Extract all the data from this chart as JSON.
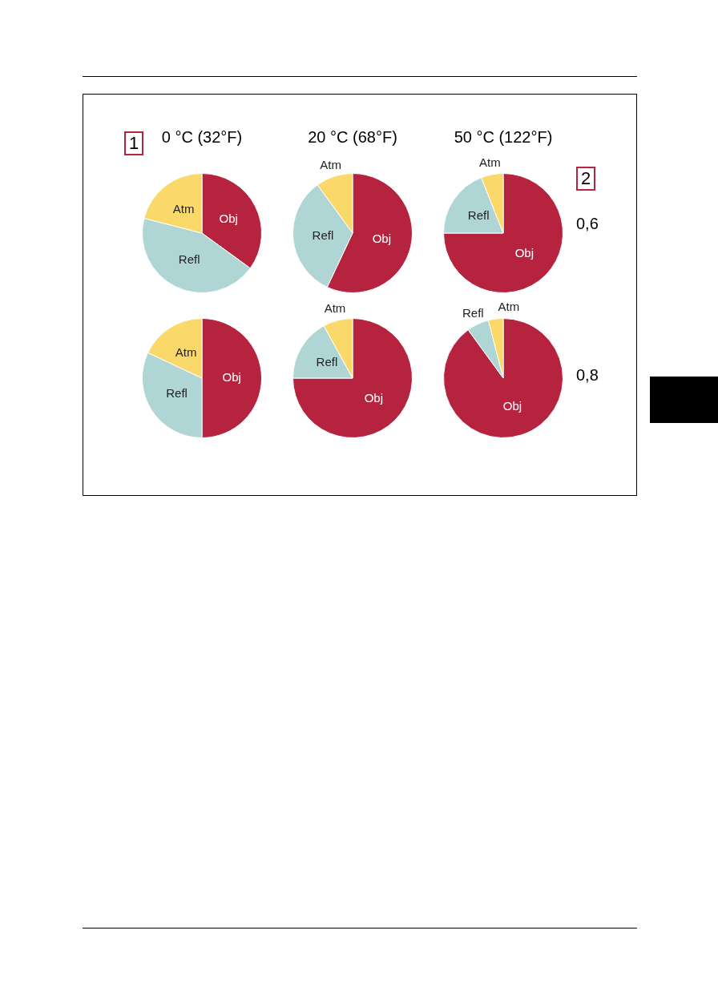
{
  "chart_data": [
    {
      "type": "pie",
      "title": "0 °C (32°F)",
      "annotations": [
        "1"
      ],
      "categories": [
        "Obj",
        "Refl",
        "Atm"
      ],
      "values": [
        35,
        44,
        21
      ],
      "colors": [
        "#b5233f",
        "#afd5d5",
        "#fbd86a"
      ]
    },
    {
      "type": "pie",
      "title": "20 °C (68°F)",
      "categories": [
        "Obj",
        "Refl",
        "Atm"
      ],
      "values": [
        57,
        33,
        10
      ],
      "colors": [
        "#b5233f",
        "#afd5d5",
        "#fbd86a"
      ]
    },
    {
      "type": "pie",
      "title": "50 °C (122°F)",
      "annotations": [
        "2"
      ],
      "ylabel": "0,6",
      "categories": [
        "Obj",
        "Refl",
        "Atm"
      ],
      "values": [
        75,
        19,
        6
      ],
      "colors": [
        "#b5233f",
        "#afd5d5",
        "#fbd86a"
      ]
    },
    {
      "type": "pie",
      "categories": [
        "Obj",
        "Refl",
        "Atm"
      ],
      "values": [
        50,
        32,
        18
      ],
      "colors": [
        "#b5233f",
        "#afd5d5",
        "#fbd86a"
      ]
    },
    {
      "type": "pie",
      "categories": [
        "Obj",
        "Refl",
        "Atm"
      ],
      "values": [
        75,
        17,
        8
      ],
      "colors": [
        "#b5233f",
        "#afd5d5",
        "#fbd86a"
      ]
    },
    {
      "type": "pie",
      "ylabel": "0,8",
      "categories": [
        "Obj",
        "Refl",
        "Atm"
      ],
      "values": [
        90,
        6,
        4
      ],
      "colors": [
        "#b5233f",
        "#afd5d5",
        "#fbd86a"
      ]
    }
  ]
}
